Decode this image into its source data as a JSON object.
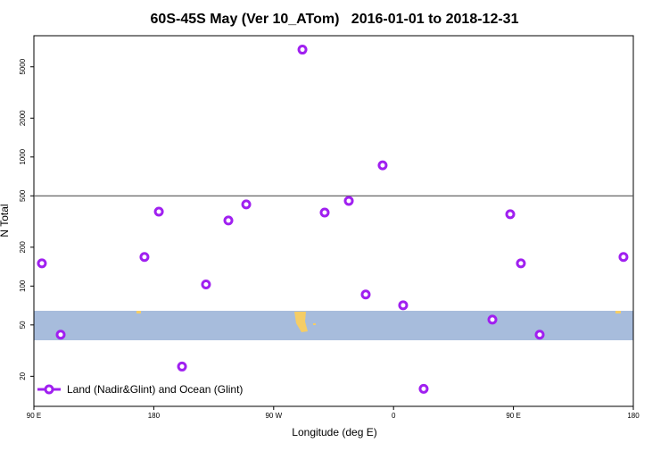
{
  "chart_data": {
    "type": "scatter",
    "title": "60S-45S May (Ver 10_ATom)   2016-01-01 to 2018-12-31",
    "xlabel": "Longitude (deg E)",
    "ylabel": "N Total",
    "log_y": true,
    "xlim": [
      90,
      540
    ],
    "xticks": [
      {
        "value": 90,
        "label": "90 E"
      },
      {
        "value": 180,
        "label": "180"
      },
      {
        "value": 270,
        "label": "90 W"
      },
      {
        "value": 360,
        "label": "0"
      },
      {
        "value": 450,
        "label": "90 E"
      },
      {
        "value": 540,
        "label": "180"
      }
    ],
    "ylim": [
      11.7,
      8700
    ],
    "yticks": [
      20,
      50,
      100,
      200,
      500,
      1000,
      2000,
      5000
    ],
    "hline": 500,
    "legend": "bottom-left",
    "series": [
      {
        "name": "Land (Nadir&Glint) and Ocean (Glint)",
        "color": "#a020f0",
        "x": [
          96.0,
          110.1,
          173.0,
          183.8,
          201.2,
          219.2,
          236.0,
          249.4,
          291.6,
          308.3,
          326.4,
          339.1,
          351.8,
          367.2,
          382.6,
          434.2,
          447.6,
          455.6,
          469.7,
          532.6
        ],
        "values": [
          150,
          42,
          168,
          377,
          23.8,
          103,
          322,
          429,
          6790,
          371,
          457,
          86,
          862,
          71,
          16,
          55,
          360,
          150,
          42,
          168
        ]
      }
    ]
  }
}
